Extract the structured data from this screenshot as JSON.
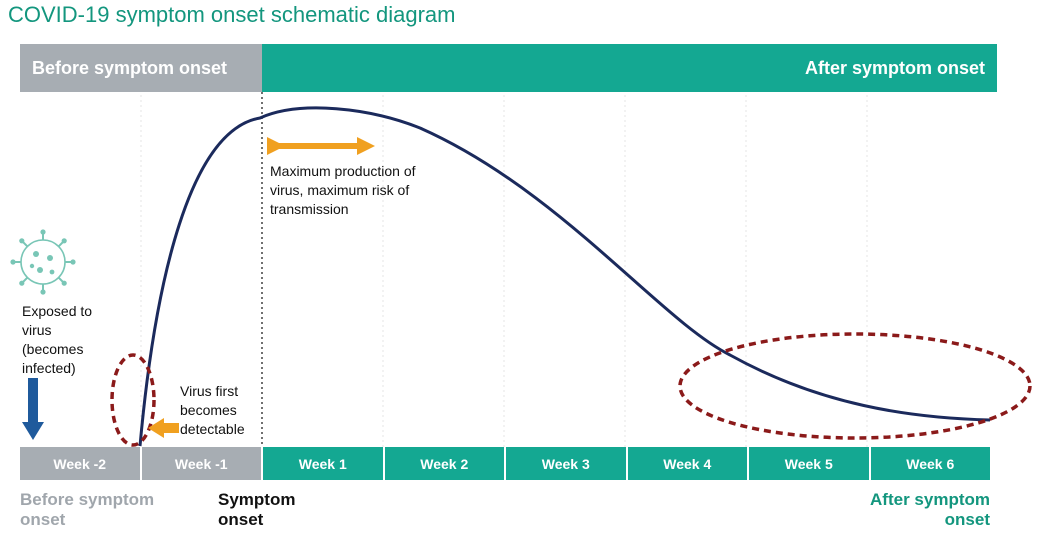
{
  "title": "COVID-19 symptom onset schematic diagram",
  "bands": {
    "before": "Before symptom onset",
    "after": "After symptom onset"
  },
  "weeks": [
    "Week -2",
    "Week -1",
    "Week 1",
    "Week 2",
    "Week 3",
    "Week 4",
    "Week 5",
    "Week 6"
  ],
  "annotations": {
    "exposed": "Exposed to virus (becomes infected)",
    "detectable": "Virus first becomes detectable",
    "peak": "Maximum production of virus, maximum risk of transmission"
  },
  "bottom_labels": {
    "before": "Before symptom onset",
    "onset": "Symptom onset",
    "after": "After symptom onset"
  },
  "colors": {
    "teal": "#14a892",
    "title_teal": "#13967e",
    "gray": "#a7adb3",
    "curve": "#1b2a5c",
    "arrow_orange": "#f0a020",
    "dashed_red": "#8b1a1a",
    "exposure_arrow": "#1f5a9c"
  },
  "icons": {
    "virus": "virus-icon",
    "exposure_arrow": "down-arrow-icon",
    "detect_arrow": "left-arrow-icon",
    "peak_arrow": "double-arrow-icon"
  }
}
